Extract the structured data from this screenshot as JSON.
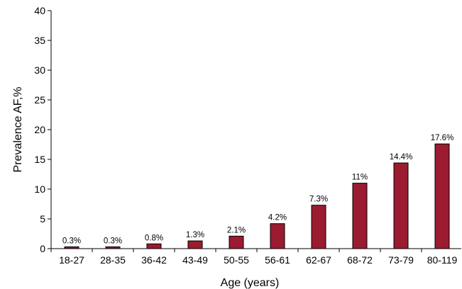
{
  "chart_data": {
    "type": "bar",
    "categories": [
      "18-27",
      "28-35",
      "36-42",
      "43-49",
      "50-55",
      "56-61",
      "62-67",
      "68-72",
      "73-79",
      "80-119"
    ],
    "values": [
      0.3,
      0.3,
      0.8,
      1.3,
      2.1,
      4.2,
      7.3,
      11,
      14.4,
      17.6
    ],
    "data_labels": [
      "0.3%",
      "0.3%",
      "0.8%",
      "1.3%",
      "2.1%",
      "4.2%",
      "7.3%",
      "11%",
      "14.4%",
      "17.6%"
    ],
    "xlabel": "Age (years)",
    "ylabel": "Prevalence AF,%",
    "ylim": [
      0,
      40
    ],
    "yticks": [
      0,
      5,
      10,
      15,
      20,
      25,
      30,
      35,
      40
    ],
    "grid": false,
    "bar_color": "#9b1b30"
  }
}
